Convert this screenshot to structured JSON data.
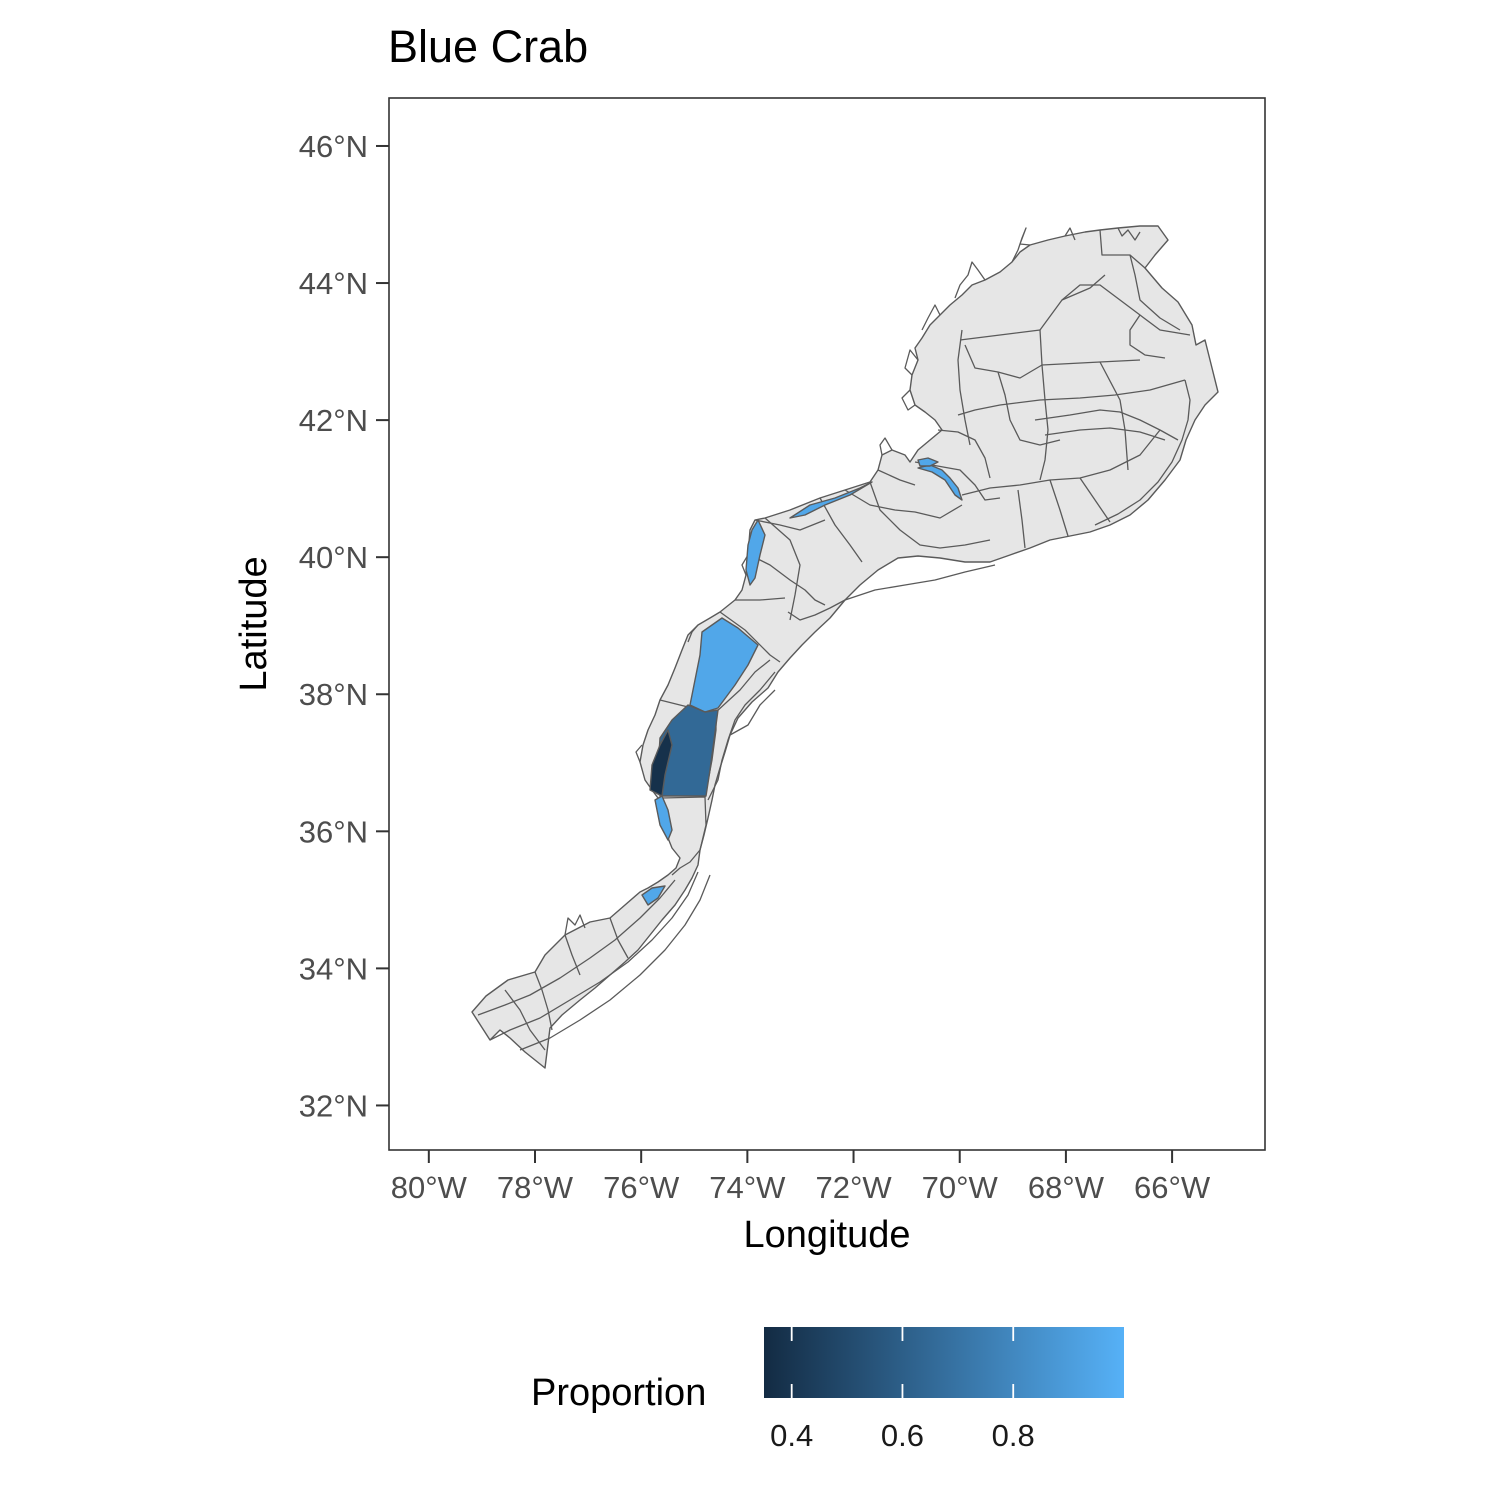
{
  "chart_data": {
    "type": "choropleth",
    "title": "Blue Crab",
    "xlabel": "Longitude",
    "ylabel": "Latitude",
    "x_ticks": [
      "80°W",
      "78°W",
      "76°W",
      "74°W",
      "72°W",
      "70°W",
      "68°W",
      "66°W"
    ],
    "y_ticks": [
      "46°N",
      "44°N",
      "42°N",
      "40°N",
      "38°N",
      "36°N",
      "34°N",
      "32°N"
    ],
    "xlim": [
      -80.75,
      -64.25
    ],
    "ylim": [
      31.35,
      46.7
    ],
    "grid": false,
    "legend": {
      "title": "Proportion",
      "position": "bottom",
      "ticks": [
        "0.4",
        "0.6",
        "0.8"
      ],
      "range": [
        0.35,
        1.0
      ],
      "low_color": "#132b43",
      "high_color": "#56b1f7"
    },
    "na_fill": "#e6e6e6",
    "border_color": "#5a5a5a",
    "regions": [
      {
        "id": "outer-chesapeake-shelf",
        "value": 0.95
      },
      {
        "id": "lower-delmarva-shelf",
        "value": 0.65
      },
      {
        "id": "virginia-inner-strip",
        "value": 0.38
      },
      {
        "id": "new-jersey-coastal",
        "value": 0.95
      },
      {
        "id": "long-island-coastal",
        "value": 0.95
      },
      {
        "id": "north-carolina-coastal",
        "value": 0.95
      },
      {
        "id": "pamlico-coastal",
        "value": 0.95
      },
      {
        "id": "nantucket-sound",
        "value": 0.95
      },
      {
        "id": "cape-cod-bay-south",
        "value": 0.95
      }
    ]
  }
}
